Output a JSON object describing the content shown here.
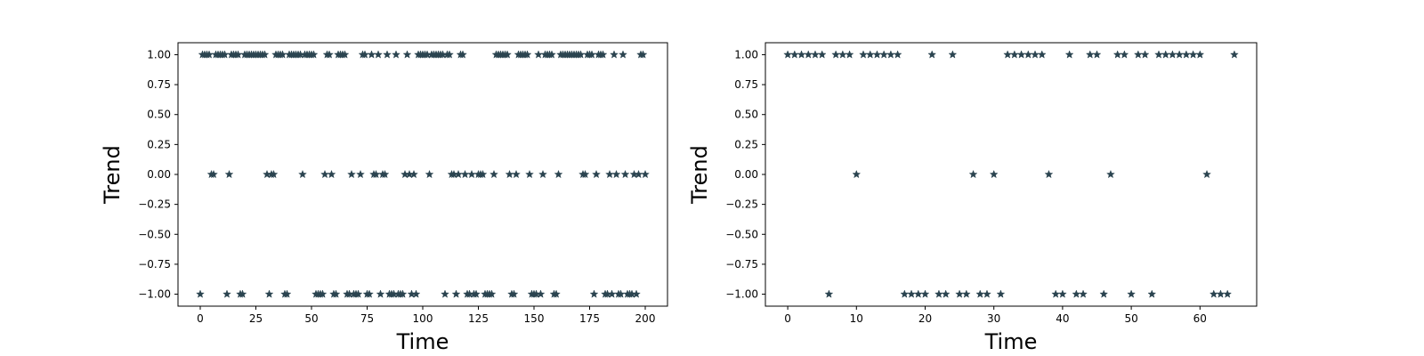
{
  "chart_data": [
    {
      "type": "scatter",
      "marker": "star",
      "xlabel": "Time",
      "ylabel": "Trend",
      "xlim": [
        -10,
        210
      ],
      "ylim": [
        -1.1,
        1.1
      ],
      "xticks": [
        "0",
        "25",
        "50",
        "75",
        "100",
        "125",
        "150",
        "175",
        "200"
      ],
      "xtick_values": [
        0,
        25,
        50,
        75,
        100,
        125,
        150,
        175,
        200
      ],
      "yticks": [
        "1.00",
        "0.75",
        "0.50",
        "0.25",
        "0.00",
        "−0.25",
        "−0.50",
        "−0.75",
        "−1.00"
      ],
      "ytick_values": [
        1,
        0.75,
        0.5,
        0.25,
        0,
        -0.25,
        -0.5,
        -0.75,
        -1
      ],
      "grid": false,
      "color": "#2b4450",
      "series": [
        {
          "x": [
            0,
            1,
            2,
            3,
            4,
            5,
            6,
            7,
            8,
            9,
            10,
            11,
            12,
            13,
            14,
            15,
            16,
            17,
            18,
            19,
            20,
            21,
            22,
            23,
            24,
            25,
            26,
            27,
            28,
            29,
            30,
            31,
            32,
            33,
            34,
            35,
            36,
            37,
            38,
            39,
            40,
            41,
            42,
            43,
            44,
            45,
            46,
            47,
            48,
            49,
            50,
            51,
            52,
            53,
            54,
            55,
            56,
            57,
            58,
            59,
            60,
            61,
            62,
            63,
            64,
            65,
            66,
            67,
            68,
            69,
            70,
            71,
            72,
            73,
            74,
            75,
            76,
            77,
            78,
            79,
            80,
            81,
            82,
            83,
            84,
            85,
            86,
            87,
            88,
            89,
            90,
            91,
            92,
            93,
            94,
            95,
            96,
            97,
            98,
            99,
            100,
            101,
            102,
            103,
            104,
            105,
            106,
            107,
            108,
            109,
            110,
            111,
            112,
            113,
            114,
            115,
            116,
            117,
            118,
            119,
            120,
            121,
            122,
            123,
            124,
            125,
            126,
            127,
            128,
            129,
            130,
            131,
            132,
            133,
            134,
            135,
            136,
            137,
            138,
            139,
            140,
            141,
            142,
            143,
            144,
            145,
            146,
            147,
            148,
            149,
            150,
            151,
            152,
            153,
            154,
            155,
            156,
            157,
            158,
            159,
            160,
            161,
            162,
            163,
            164,
            165,
            166,
            167,
            168,
            169,
            170,
            171,
            172,
            173,
            174,
            175,
            176,
            177,
            178,
            179,
            180,
            181,
            182,
            183,
            184,
            185,
            186,
            187,
            188,
            189,
            190,
            191,
            192,
            193,
            194,
            195,
            196,
            197,
            198,
            199,
            200
          ],
          "y": [
            -1,
            1,
            1,
            1,
            1,
            0,
            0,
            1,
            1,
            1,
            1,
            1,
            -1,
            0,
            1,
            1,
            1,
            1,
            -1,
            -1,
            1,
            1,
            1,
            1,
            1,
            1,
            1,
            1,
            1,
            1,
            0,
            -1,
            0,
            0,
            1,
            1,
            1,
            1,
            -1,
            -1,
            1,
            1,
            1,
            1,
            1,
            1,
            0,
            1,
            1,
            1,
            1,
            1,
            -1,
            -1,
            -1,
            -1,
            0,
            1,
            1,
            0,
            -1,
            -1,
            1,
            1,
            1,
            1,
            -1,
            -1,
            0,
            -1,
            -1,
            -1,
            0,
            1,
            1,
            -1,
            -1,
            1,
            0,
            0,
            1,
            -1,
            0,
            0,
            1,
            -1,
            -1,
            -1,
            1,
            -1,
            -1,
            -1,
            0,
            1,
            0,
            -1,
            0,
            -1,
            1,
            1,
            1,
            1,
            1,
            0,
            1,
            1,
            1,
            1,
            1,
            1,
            -1,
            1,
            1,
            0,
            0,
            -1,
            0,
            1,
            1,
            0,
            -1,
            -1,
            0,
            -1,
            -1,
            0,
            0,
            0,
            -1,
            -1,
            -1,
            -1,
            0,
            1,
            1,
            1,
            1,
            1,
            1,
            0,
            -1,
            -1,
            0,
            1,
            1,
            1,
            1,
            1,
            0,
            -1,
            -1,
            -1,
            1,
            -1,
            0,
            1,
            1,
            1,
            1,
            -1,
            -1,
            0,
            1,
            1,
            1,
            1,
            1,
            1,
            1,
            1,
            1,
            1,
            0,
            0,
            1,
            1,
            1,
            -1,
            0,
            1,
            1,
            1,
            -1,
            -1,
            0,
            -1,
            1,
            0,
            -1,
            -1,
            1,
            0,
            -1,
            -1,
            -1,
            0,
            -1,
            0,
            1,
            1,
            0
          ]
        }
      ]
    },
    {
      "type": "scatter",
      "marker": "star",
      "xlabel": "Time",
      "ylabel": "Trend",
      "xlim": [
        -3.25,
        68.25
      ],
      "ylim": [
        -1.1,
        1.1
      ],
      "xticks": [
        "0",
        "10",
        "20",
        "30",
        "40",
        "50",
        "60"
      ],
      "xtick_values": [
        0,
        10,
        20,
        30,
        40,
        50,
        60
      ],
      "yticks": [
        "1.00",
        "0.75",
        "0.50",
        "0.25",
        "0.00",
        "−0.25",
        "−0.50",
        "−0.75",
        "−1.00"
      ],
      "ytick_values": [
        1,
        0.75,
        0.5,
        0.25,
        0,
        -0.25,
        -0.5,
        -0.75,
        -1
      ],
      "grid": false,
      "color": "#2b4450",
      "series": [
        {
          "x": [
            0,
            1,
            2,
            3,
            4,
            5,
            6,
            7,
            8,
            9,
            10,
            11,
            12,
            13,
            14,
            15,
            16,
            17,
            18,
            19,
            20,
            21,
            22,
            23,
            24,
            25,
            26,
            27,
            28,
            29,
            30,
            31,
            32,
            33,
            34,
            35,
            36,
            37,
            38,
            39,
            40,
            41,
            42,
            43,
            44,
            45,
            46,
            47,
            48,
            49,
            50,
            51,
            52,
            53,
            54,
            55,
            56,
            57,
            58,
            59,
            60,
            61,
            62,
            63,
            64,
            65
          ],
          "y": [
            1,
            1,
            1,
            1,
            1,
            1,
            -1,
            1,
            1,
            1,
            0,
            1,
            1,
            1,
            1,
            1,
            1,
            -1,
            -1,
            -1,
            -1,
            1,
            -1,
            -1,
            1,
            -1,
            -1,
            0,
            -1,
            -1,
            0,
            -1,
            1,
            1,
            1,
            1,
            1,
            1,
            0,
            -1,
            -1,
            1,
            -1,
            -1,
            1,
            1,
            -1,
            0,
            1,
            1,
            -1,
            1,
            1,
            -1,
            1,
            1,
            1,
            1,
            1,
            1,
            1,
            0,
            -1,
            -1,
            -1,
            1
          ]
        }
      ]
    }
  ]
}
